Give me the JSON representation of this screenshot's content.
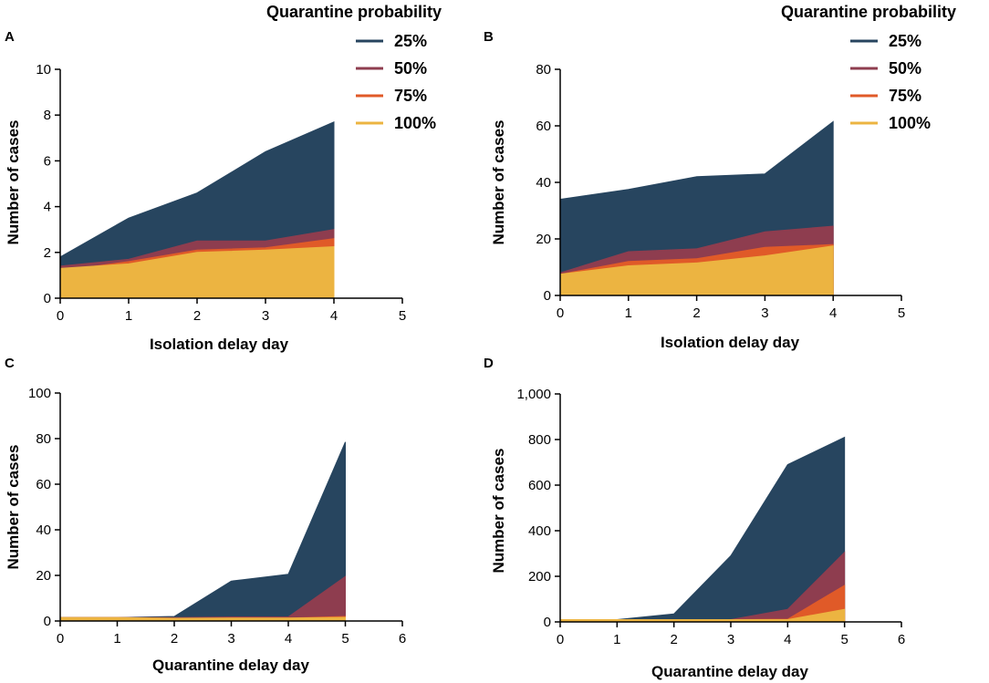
{
  "legend": {
    "title": "Quarantine probability",
    "entries": [
      "25%",
      "50%",
      "75%",
      "100%"
    ]
  },
  "colors": {
    "p25": "#27455f",
    "p50": "#8e3d4f",
    "p75": "#e05a28",
    "p100": "#ecb441"
  },
  "chart_data": [
    {
      "id": "A",
      "type": "area",
      "panel_label": "A",
      "xlabel": "Isolation delay day",
      "ylabel": "Number of cases",
      "xlim": [
        0,
        5
      ],
      "ylim": [
        0,
        10
      ],
      "xticks": [
        0,
        1,
        2,
        3,
        4,
        5
      ],
      "yticks": [
        0,
        2,
        4,
        6,
        8,
        10
      ],
      "ytick_labels": [
        "0",
        "2",
        "4",
        "6",
        "8",
        "10"
      ],
      "x": [
        0,
        1,
        2,
        3,
        4
      ],
      "series": [
        {
          "name": "25%",
          "values": [
            1.8,
            3.5,
            4.6,
            6.4,
            7.7
          ]
        },
        {
          "name": "50%",
          "values": [
            1.4,
            1.7,
            2.5,
            2.5,
            3.0
          ]
        },
        {
          "name": "75%",
          "values": [
            1.2,
            1.6,
            2.1,
            2.2,
            2.6
          ]
        },
        {
          "name": "100%",
          "values": [
            1.3,
            1.5,
            2.0,
            2.1,
            2.25
          ]
        }
      ]
    },
    {
      "id": "B",
      "type": "area",
      "panel_label": "B",
      "xlabel": "Isolation delay day",
      "ylabel": "Number of cases",
      "xlim": [
        0,
        5
      ],
      "ylim": [
        0,
        80
      ],
      "xticks": [
        0,
        1,
        2,
        3,
        4,
        5
      ],
      "yticks": [
        0,
        20,
        40,
        60,
        80
      ],
      "ytick_labels": [
        "0",
        "20",
        "40",
        "60",
        "80"
      ],
      "x": [
        0,
        1,
        2,
        3,
        4
      ],
      "series": [
        {
          "name": "25%",
          "values": [
            34,
            37.5,
            42,
            43,
            61.5
          ]
        },
        {
          "name": "50%",
          "values": [
            8,
            15.5,
            16.5,
            22.5,
            24.5
          ]
        },
        {
          "name": "75%",
          "values": [
            7.5,
            12,
            13,
            17,
            18
          ]
        },
        {
          "name": "100%",
          "values": [
            7.5,
            10.5,
            11.5,
            14,
            17.5
          ]
        }
      ]
    },
    {
      "id": "C",
      "type": "area",
      "panel_label": "C",
      "xlabel": "Quarantine delay day",
      "ylabel": "Number of cases",
      "xlim": [
        0,
        6
      ],
      "ylim": [
        0,
        100
      ],
      "xticks": [
        0,
        1,
        2,
        3,
        4,
        5,
        6
      ],
      "yticks": [
        0,
        20,
        40,
        60,
        80,
        100
      ],
      "ytick_labels": [
        "0",
        "20",
        "40",
        "60",
        "80",
        "100"
      ],
      "x": [
        0,
        1,
        2,
        3,
        4,
        5
      ],
      "series": [
        {
          "name": "25%",
          "values": [
            1.5,
            1.5,
            2,
            17.5,
            20.5,
            78.5
          ]
        },
        {
          "name": "50%",
          "values": [
            1.5,
            1.5,
            1.5,
            1.8,
            1.8,
            19.5
          ]
        },
        {
          "name": "75%",
          "values": [
            1.5,
            1.5,
            1.2,
            1.3,
            1.3,
            2.0
          ]
        },
        {
          "name": "100%",
          "values": [
            1.5,
            1.5,
            1.2,
            1.3,
            1.3,
            1.6
          ]
        }
      ]
    },
    {
      "id": "D",
      "type": "area",
      "panel_label": "D",
      "xlabel": "Quarantine delay day",
      "ylabel": "Number of cases",
      "xlim": [
        0,
        6
      ],
      "ylim": [
        0,
        1000
      ],
      "xticks": [
        0,
        1,
        2,
        3,
        4,
        5,
        6
      ],
      "yticks": [
        0,
        200,
        400,
        600,
        800,
        1000
      ],
      "ytick_labels": [
        "0",
        "200",
        "400",
        "600",
        "800",
        "1,000"
      ],
      "x": [
        0,
        1,
        2,
        3,
        4,
        5
      ],
      "series": [
        {
          "name": "25%",
          "values": [
            10,
            10,
            35,
            290,
            690,
            810
          ]
        },
        {
          "name": "50%",
          "values": [
            10,
            10,
            10,
            10,
            55,
            305
          ]
        },
        {
          "name": "75%",
          "values": [
            10,
            10,
            10,
            10,
            12,
            160
          ]
        },
        {
          "name": "100%",
          "values": [
            10,
            10,
            10,
            10,
            10,
            55
          ]
        }
      ]
    }
  ]
}
